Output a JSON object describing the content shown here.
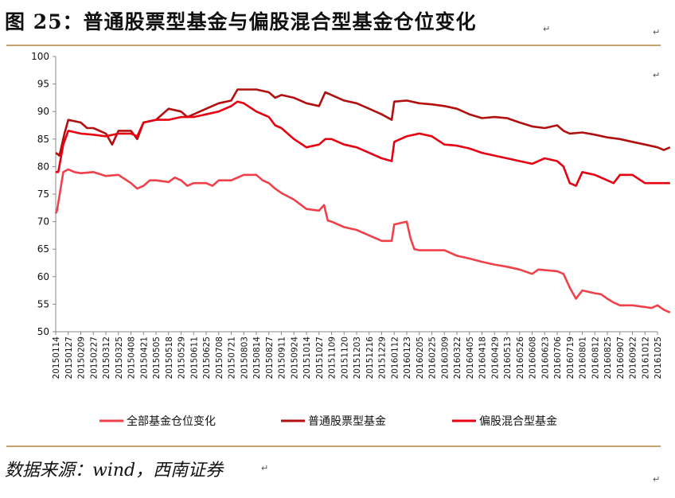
{
  "header": {
    "title": "图 25：普通股票型基金与偏股混合型基金仓位变化",
    "return_mark": "↵"
  },
  "footer": {
    "source": "数据来源：wind，西南证券"
  },
  "colors": {
    "rule": "#c3a36b",
    "all_funds": "#f0414a",
    "stock_funds": "#b20f0f",
    "hybrid_funds": "#e60012"
  },
  "chart_data": {
    "type": "line",
    "title": "",
    "xlabel": "",
    "ylabel": "",
    "ylim": [
      50,
      100
    ],
    "yticks": [
      50,
      55,
      60,
      65,
      70,
      75,
      80,
      85,
      90,
      95,
      100
    ],
    "grid": false,
    "legend_position": "bottom",
    "x_tick_labels": [
      "20150114",
      "20150127",
      "20150209",
      "20150227",
      "20150312",
      "20150325",
      "20150408",
      "20150421",
      "20150505",
      "20150518",
      "20150529",
      "20150611",
      "20150625",
      "20150708",
      "20150721",
      "20150803",
      "20150814",
      "20150827",
      "20150911",
      "20150924",
      "20151014",
      "20151027",
      "20151109",
      "20151120",
      "20151203",
      "20151216",
      "20151229",
      "20160112",
      "20160123",
      "20160205",
      "20160225",
      "20160309",
      "20160322",
      "20160405",
      "20160418",
      "20160429",
      "20160513",
      "20160526",
      "20160608",
      "20160623",
      "20160706",
      "20160719",
      "20160801",
      "20160812",
      "20160825",
      "20160907",
      "20160922",
      "20161012",
      "20161025"
    ],
    "series": [
      {
        "name": "全部基金仓位变化",
        "color": "#f0414a",
        "points": [
          [
            0,
            71.5
          ],
          [
            0.1,
            72
          ],
          [
            0.6,
            79
          ],
          [
            1,
            79.5
          ],
          [
            1.5,
            79
          ],
          [
            2,
            78.8
          ],
          [
            3,
            79
          ],
          [
            4,
            78.3
          ],
          [
            5,
            78.5
          ],
          [
            6,
            77
          ],
          [
            6.5,
            76
          ],
          [
            7,
            76.5
          ],
          [
            7.5,
            77.5
          ],
          [
            8,
            77.5
          ],
          [
            9,
            77.2
          ],
          [
            9.5,
            78
          ],
          [
            10,
            77.5
          ],
          [
            10.5,
            76.5
          ],
          [
            11,
            77
          ],
          [
            12,
            77
          ],
          [
            12.5,
            76.5
          ],
          [
            13,
            77.5
          ],
          [
            14,
            77.5
          ],
          [
            15,
            78.5
          ],
          [
            16,
            78.5
          ],
          [
            16.5,
            77.5
          ],
          [
            17,
            77
          ],
          [
            17.5,
            76
          ],
          [
            18,
            75.2
          ],
          [
            19,
            74
          ],
          [
            20,
            72.3
          ],
          [
            21,
            72
          ],
          [
            21.4,
            73
          ],
          [
            21.7,
            70.2
          ],
          [
            22,
            70
          ],
          [
            23,
            69
          ],
          [
            24,
            68.5
          ],
          [
            25,
            67.5
          ],
          [
            26,
            66.5
          ],
          [
            26.8,
            66.5
          ],
          [
            27,
            69.5
          ],
          [
            28,
            70
          ],
          [
            28.3,
            67
          ],
          [
            28.6,
            65
          ],
          [
            29,
            64.8
          ],
          [
            31,
            64.8
          ],
          [
            32,
            63.8
          ],
          [
            33,
            63.3
          ],
          [
            34,
            62.7
          ],
          [
            35,
            62.2
          ],
          [
            36,
            61.8
          ],
          [
            37,
            61.3
          ],
          [
            38,
            60.5
          ],
          [
            38.5,
            61.3
          ],
          [
            40,
            61
          ],
          [
            40.5,
            60.5
          ],
          [
            41,
            58
          ],
          [
            41.5,
            56
          ],
          [
            42,
            57.5
          ],
          [
            43,
            57
          ],
          [
            43.5,
            56.8
          ],
          [
            44,
            56
          ],
          [
            44.5,
            55.3
          ],
          [
            45,
            54.8
          ],
          [
            46,
            54.8
          ],
          [
            47,
            54.5
          ],
          [
            47.5,
            54.3
          ],
          [
            48,
            54.8
          ],
          [
            48.5,
            54
          ],
          [
            49,
            53.5
          ]
        ]
      },
      {
        "name": "普通股票型基金",
        "color": "#b20f0f",
        "points": [
          [
            0,
            82.5
          ],
          [
            0.3,
            82
          ],
          [
            0.7,
            86
          ],
          [
            1,
            88.5
          ],
          [
            2,
            88
          ],
          [
            2.5,
            87
          ],
          [
            3,
            87
          ],
          [
            4,
            86
          ],
          [
            4.5,
            84
          ],
          [
            5,
            86.5
          ],
          [
            6,
            86.5
          ],
          [
            6.5,
            85
          ],
          [
            7,
            88
          ],
          [
            8,
            88.5
          ],
          [
            9,
            90.5
          ],
          [
            10,
            90
          ],
          [
            10.5,
            89
          ],
          [
            11,
            89.5
          ],
          [
            12,
            90.5
          ],
          [
            13,
            91.5
          ],
          [
            14,
            92
          ],
          [
            14.5,
            94
          ],
          [
            16,
            94
          ],
          [
            17,
            93.5
          ],
          [
            17.5,
            92.5
          ],
          [
            18,
            93
          ],
          [
            19,
            92.5
          ],
          [
            20,
            91.5
          ],
          [
            21,
            91
          ],
          [
            21.5,
            93.5
          ],
          [
            22,
            93
          ],
          [
            23,
            92
          ],
          [
            24,
            91.5
          ],
          [
            25,
            90.5
          ],
          [
            26,
            89.5
          ],
          [
            26.8,
            88.5
          ],
          [
            27,
            91.8
          ],
          [
            28,
            92
          ],
          [
            29,
            91.5
          ],
          [
            30,
            91.3
          ],
          [
            31,
            91
          ],
          [
            32,
            90.5
          ],
          [
            33,
            89.5
          ],
          [
            34,
            88.8
          ],
          [
            35,
            89
          ],
          [
            36,
            88.8
          ],
          [
            37,
            88
          ],
          [
            38,
            87.3
          ],
          [
            39,
            87
          ],
          [
            40,
            87.5
          ],
          [
            40.5,
            86.5
          ],
          [
            41,
            86
          ],
          [
            42,
            86.2
          ],
          [
            43,
            85.8
          ],
          [
            44,
            85.3
          ],
          [
            45,
            85
          ],
          [
            46,
            84.5
          ],
          [
            47,
            84
          ],
          [
            48,
            83.5
          ],
          [
            48.5,
            83
          ],
          [
            49,
            83.5
          ]
        ]
      },
      {
        "name": "偏股混合型基金",
        "color": "#e60012",
        "points": [
          [
            0,
            79
          ],
          [
            0.2,
            79
          ],
          [
            0.6,
            84
          ],
          [
            1,
            86.5
          ],
          [
            2,
            86
          ],
          [
            3,
            85.8
          ],
          [
            4,
            85.5
          ],
          [
            5,
            86
          ],
          [
            6,
            86
          ],
          [
            6.5,
            85.5
          ],
          [
            7,
            88
          ],
          [
            8,
            88.5
          ],
          [
            9,
            88.5
          ],
          [
            10,
            89
          ],
          [
            11,
            89
          ],
          [
            12,
            89.5
          ],
          [
            13,
            90
          ],
          [
            14,
            91
          ],
          [
            14.5,
            91.8
          ],
          [
            15,
            91.5
          ],
          [
            16,
            90
          ],
          [
            17,
            89
          ],
          [
            17.5,
            87.5
          ],
          [
            18,
            87
          ],
          [
            19,
            85
          ],
          [
            20,
            83.5
          ],
          [
            21,
            84
          ],
          [
            21.5,
            85
          ],
          [
            22,
            85
          ],
          [
            23,
            84
          ],
          [
            24,
            83.5
          ],
          [
            25,
            82.5
          ],
          [
            26,
            81.5
          ],
          [
            26.8,
            81
          ],
          [
            27,
            84.5
          ],
          [
            28,
            85.5
          ],
          [
            29,
            86
          ],
          [
            30,
            85.5
          ],
          [
            31,
            84
          ],
          [
            32,
            83.8
          ],
          [
            33,
            83.3
          ],
          [
            34,
            82.5
          ],
          [
            35,
            82
          ],
          [
            36,
            81.5
          ],
          [
            37,
            81
          ],
          [
            38,
            80.5
          ],
          [
            39,
            81.5
          ],
          [
            40,
            81
          ],
          [
            40.5,
            80
          ],
          [
            41,
            77
          ],
          [
            41.5,
            76.5
          ],
          [
            42,
            79
          ],
          [
            43,
            78.5
          ],
          [
            44,
            77.5
          ],
          [
            44.5,
            77
          ],
          [
            45,
            78.5
          ],
          [
            46,
            78.5
          ],
          [
            47,
            77
          ],
          [
            48,
            77
          ],
          [
            49,
            77
          ]
        ]
      }
    ]
  }
}
